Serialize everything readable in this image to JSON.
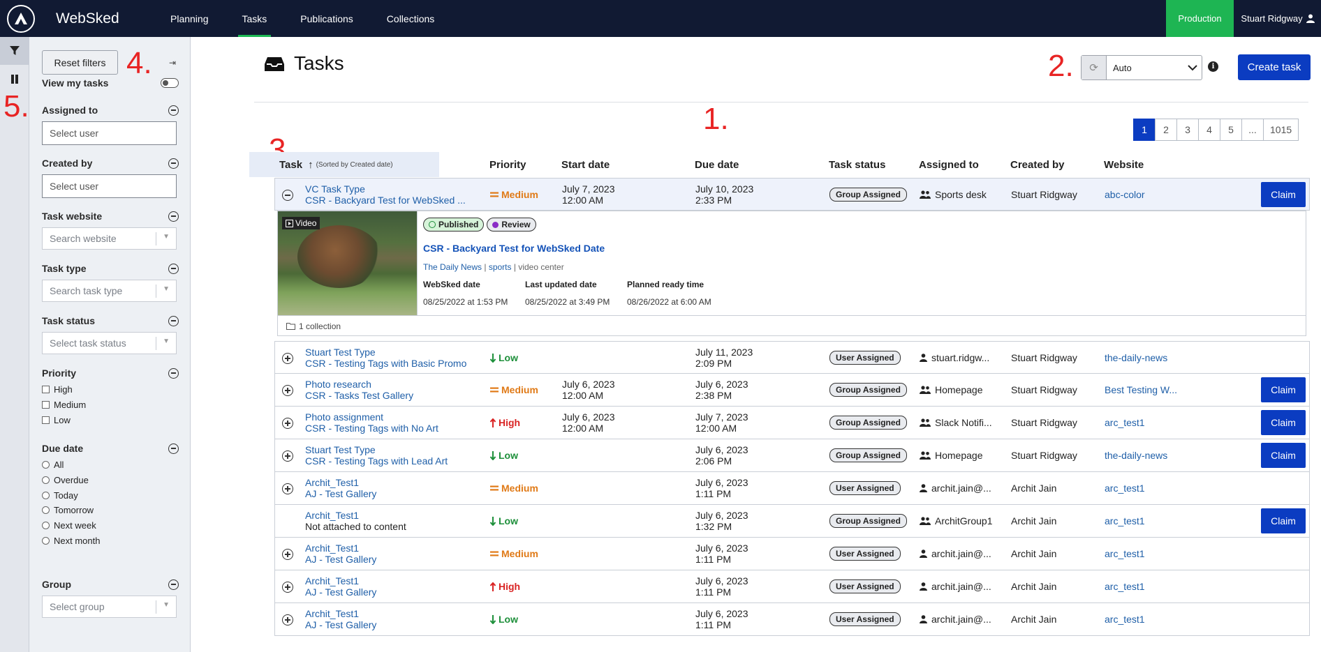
{
  "app": {
    "name": "WebSked",
    "environment": "Production",
    "user": "Stuart Ridgway"
  },
  "nav": [
    {
      "label": "Planning"
    },
    {
      "label": "Tasks",
      "active": true
    },
    {
      "label": "Publications"
    },
    {
      "label": "Collections"
    }
  ],
  "annotations": {
    "a1": "1.",
    "a2": "2.",
    "a3": "3.",
    "a4": "4.",
    "a5": "5."
  },
  "filters": {
    "reset_label": "Reset filters",
    "view_my_tasks": "View my tasks",
    "assigned_to": {
      "label": "Assigned to",
      "placeholder": "Select user"
    },
    "created_by": {
      "label": "Created by",
      "placeholder": "Select user"
    },
    "task_website": {
      "label": "Task website",
      "placeholder": "Search website"
    },
    "task_type": {
      "label": "Task type",
      "placeholder": "Search task type"
    },
    "task_status": {
      "label": "Task status",
      "placeholder": "Select task status"
    },
    "priority": {
      "label": "Priority",
      "options": [
        "High",
        "Medium",
        "Low"
      ]
    },
    "due_date": {
      "label": "Due date",
      "options": [
        "All",
        "Overdue",
        "Today",
        "Tomorrow",
        "Next week",
        "Next month"
      ]
    },
    "group": {
      "label": "Group",
      "placeholder": "Select group"
    }
  },
  "page": {
    "title": "Tasks",
    "refresh_value": "Auto",
    "create_label": "Create task"
  },
  "pagination": [
    "1",
    "2",
    "3",
    "4",
    "5",
    "...",
    "1015"
  ],
  "table": {
    "headers": {
      "task": "Task",
      "sort_note": "(Sorted by Created date)",
      "priority": "Priority",
      "start": "Start date",
      "due": "Due date",
      "status": "Task status",
      "assigned": "Assigned to",
      "created": "Created by",
      "website": "Website"
    },
    "claim_label": "Claim",
    "rows": [
      {
        "type": "VC Task Type",
        "content": "CSR - Backyard Test for WebSked ...",
        "priority": "Medium",
        "start_date": "July 7, 2023",
        "start_time": "12:00 AM",
        "due_date": "July 10, 2023",
        "due_time": "2:33 PM",
        "status": "Group Assigned",
        "assignee": "Sports desk",
        "group": true,
        "created_by": "Stuart Ridgway",
        "website": "abc-color",
        "claim": true
      },
      {
        "type": "Stuart Test Type",
        "content": "CSR - Testing Tags with Basic Promo",
        "priority": "Low",
        "start_date": "",
        "start_time": "",
        "due_date": "July 11, 2023",
        "due_time": "2:09 PM",
        "status": "User Assigned",
        "assignee": "stuart.ridgw...",
        "group": false,
        "created_by": "Stuart Ridgway",
        "website": "the-daily-news",
        "claim": false
      },
      {
        "type": "Photo research",
        "content": "CSR - Tasks Test Gallery",
        "priority": "Medium",
        "start_date": "July 6, 2023",
        "start_time": "12:00 AM",
        "due_date": "July 6, 2023",
        "due_time": "2:38 PM",
        "status": "Group Assigned",
        "assignee": "Homepage",
        "group": true,
        "created_by": "Stuart Ridgway",
        "website": "Best Testing W...",
        "claim": true
      },
      {
        "type": "Photo assignment",
        "content": "CSR - Testing Tags with No Art",
        "priority": "High",
        "start_date": "July 6, 2023",
        "start_time": "12:00 AM",
        "due_date": "July 7, 2023",
        "due_time": "12:00 AM",
        "status": "Group Assigned",
        "assignee": "Slack Notifi...",
        "group": true,
        "created_by": "Stuart Ridgway",
        "website": "arc_test1",
        "claim": true
      },
      {
        "type": "Stuart Test Type",
        "content": "CSR - Testing Tags with Lead Art",
        "priority": "Low",
        "start_date": "",
        "start_time": "",
        "due_date": "July 6, 2023",
        "due_time": "2:06 PM",
        "status": "Group Assigned",
        "assignee": "Homepage",
        "group": true,
        "created_by": "Stuart Ridgway",
        "website": "the-daily-news",
        "claim": true
      },
      {
        "type": "Archit_Test1",
        "content": "AJ - Test Gallery",
        "priority": "Medium",
        "start_date": "",
        "start_time": "",
        "due_date": "July 6, 2023",
        "due_time": "1:11 PM",
        "status": "User Assigned",
        "assignee": "archit.jain@...",
        "group": false,
        "created_by": "Archit Jain",
        "website": "arc_test1",
        "claim": false
      },
      {
        "type": "Archit_Test1",
        "content": "Not attached to content",
        "priority": "Low",
        "start_date": "",
        "start_time": "",
        "due_date": "July 6, 2023",
        "due_time": "1:32 PM",
        "status": "Group Assigned",
        "assignee": "ArchitGroup1",
        "group": true,
        "created_by": "Archit Jain",
        "website": "arc_test1",
        "claim": true,
        "no_content": true
      },
      {
        "type": "Archit_Test1",
        "content": "AJ - Test Gallery",
        "priority": "Medium",
        "start_date": "",
        "start_time": "",
        "due_date": "July 6, 2023",
        "due_time": "1:11 PM",
        "status": "User Assigned",
        "assignee": "archit.jain@...",
        "group": false,
        "created_by": "Archit Jain",
        "website": "arc_test1",
        "claim": false
      },
      {
        "type": "Archit_Test1",
        "content": "AJ - Test Gallery",
        "priority": "High",
        "start_date": "",
        "start_time": "",
        "due_date": "July 6, 2023",
        "due_time": "1:11 PM",
        "status": "User Assigned",
        "assignee": "archit.jain@...",
        "group": false,
        "created_by": "Archit Jain",
        "website": "arc_test1",
        "claim": false
      },
      {
        "type": "Archit_Test1",
        "content": "AJ - Test Gallery",
        "priority": "Low",
        "start_date": "",
        "start_time": "",
        "due_date": "July 6, 2023",
        "due_time": "1:11 PM",
        "status": "User Assigned",
        "assignee": "archit.jain@...",
        "group": false,
        "created_by": "Archit Jain",
        "website": "arc_test1",
        "claim": false
      }
    ]
  },
  "detail": {
    "media_label": "Video",
    "status_published": "Published",
    "status_review": "Review",
    "title": "CSR - Backyard Test for WebSked Date",
    "publication": "The Daily News",
    "section": "sports",
    "section2": "video center",
    "websked_date_label": "WebSked date",
    "websked_date": "08/25/2022 at 1:53 PM",
    "updated_label": "Last updated date",
    "updated": "08/25/2022 at 3:49 PM",
    "ready_label": "Planned ready time",
    "ready": "08/26/2022 at 6:00 AM",
    "collections": "1 collection"
  }
}
